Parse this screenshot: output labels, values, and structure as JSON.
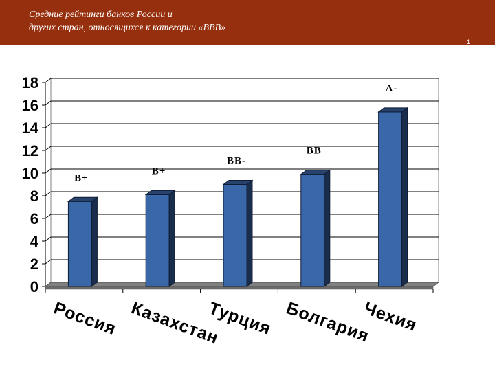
{
  "slide": {
    "title": "Средние рейтинги банков России и\nдругих стран, относящихся к категории «ВВВ»",
    "corner_mark": "1"
  },
  "colors": {
    "header_bg": "#962f0d",
    "bar_front": "#3a67a8",
    "bar_top": "#27426c",
    "bar_side": "#1b2d4c",
    "floor": "#808080",
    "gridline": "#000000"
  },
  "chart_data": {
    "type": "bar",
    "title": "",
    "xlabel": "",
    "ylabel": "",
    "categories": [
      "Россия",
      "Казахстан",
      "Турция",
      "Болгария",
      "Чехия"
    ],
    "values": [
      7.5,
      8.1,
      9.0,
      9.9,
      15.4
    ],
    "data_labels": [
      "B+",
      "B+",
      "BB-",
      "BB",
      "A-"
    ],
    "ylim": [
      0,
      18
    ],
    "yticks": [
      "0",
      "2",
      "4",
      "6",
      "8",
      "10",
      "12",
      "14",
      "16",
      "18"
    ],
    "grid": true,
    "legend": "none",
    "style": "3d-column"
  }
}
